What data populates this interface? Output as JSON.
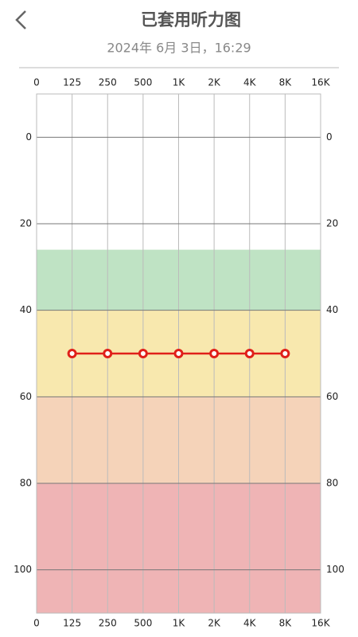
{
  "header": {
    "title": "已套用听力图",
    "date": "2024年 6月 3日，16:29"
  },
  "chart_data": {
    "type": "line",
    "categories": [
      "0",
      "125",
      "250",
      "500",
      "1K",
      "2K",
      "4K",
      "8K",
      "16K"
    ],
    "series": [
      {
        "color": "#e0201a",
        "values": [
          null,
          50,
          50,
          50,
          50,
          50,
          50,
          50,
          null
        ]
      }
    ],
    "ylim": [
      -10,
      110
    ],
    "yticks": [
      0,
      20,
      40,
      60,
      80,
      100
    ],
    "inverted": true,
    "grid": true,
    "bands": [
      {
        "from": 26,
        "to": 40,
        "color": "#bfe3c4"
      },
      {
        "from": 40,
        "to": 60,
        "color": "#f8e8ae"
      },
      {
        "from": 60,
        "to": 80,
        "color": "#f5d3b9"
      },
      {
        "from": 80,
        "to": 110,
        "color": "#efb4b5"
      }
    ]
  }
}
